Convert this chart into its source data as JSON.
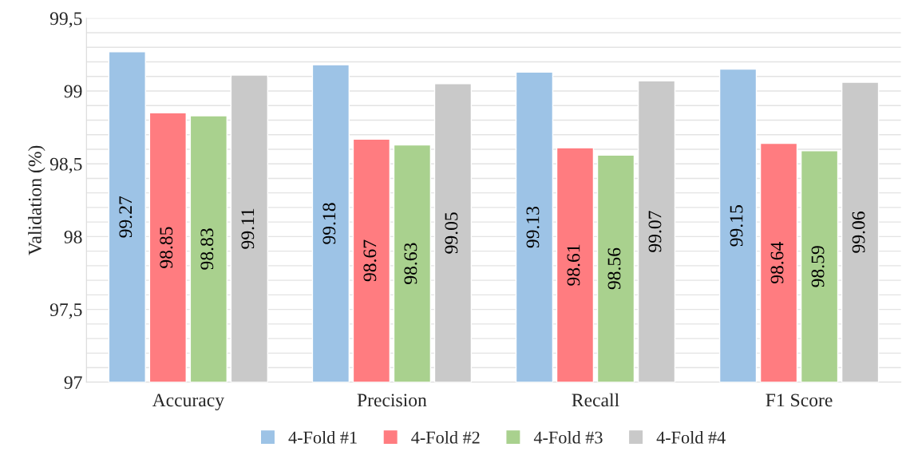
{
  "chart_data": {
    "type": "bar",
    "ylabel": "Validation (%)",
    "categories": [
      "Accuracy",
      "Precision",
      "Recall",
      "F1 Score"
    ],
    "series": [
      {
        "name": "4-Fold #1",
        "color": "#9dc3e6",
        "values": [
          99.27,
          99.18,
          99.13,
          99.15
        ]
      },
      {
        "name": "4-Fold #2",
        "color": "#ff7c80",
        "values": [
          98.85,
          98.67,
          98.61,
          98.64
        ]
      },
      {
        "name": "4-Fold #3",
        "color": "#a9d18e",
        "values": [
          98.83,
          98.63,
          98.56,
          98.59
        ]
      },
      {
        "name": "4-Fold #4",
        "color": "#c9c9c9",
        "values": [
          99.11,
          99.05,
          99.07,
          99.06
        ]
      }
    ],
    "ylim": [
      97,
      99.5
    ],
    "yticks": [
      97,
      {
        "value": 97.1,
        "label": null
      },
      {
        "value": 97.2,
        "label": null
      },
      {
        "value": 97.3,
        "label": null
      },
      {
        "value": 97.4,
        "label": null
      },
      {
        "value": 97.5,
        "label": "97,5"
      },
      {
        "value": 97.6,
        "label": null
      },
      {
        "value": 97.7,
        "label": null
      },
      {
        "value": 97.8,
        "label": null
      },
      {
        "value": 97.9,
        "label": null
      },
      98,
      {
        "value": 98.1,
        "label": null
      },
      {
        "value": 98.2,
        "label": null
      },
      {
        "value": 98.3,
        "label": null
      },
      {
        "value": 98.4,
        "label": null
      },
      {
        "value": 98.5,
        "label": "98,5"
      },
      {
        "value": 98.6,
        "label": null
      },
      {
        "value": 98.7,
        "label": null
      },
      {
        "value": 98.8,
        "label": null
      },
      {
        "value": 98.9,
        "label": null
      },
      99,
      {
        "value": 99.1,
        "label": null
      },
      {
        "value": 99.2,
        "label": null
      },
      {
        "value": 99.3,
        "label": null
      },
      {
        "value": 99.4,
        "label": null
      },
      {
        "value": 99.5,
        "label": "99,5"
      }
    ],
    "grid": "y",
    "legend": "bottom",
    "data_labels": true
  }
}
